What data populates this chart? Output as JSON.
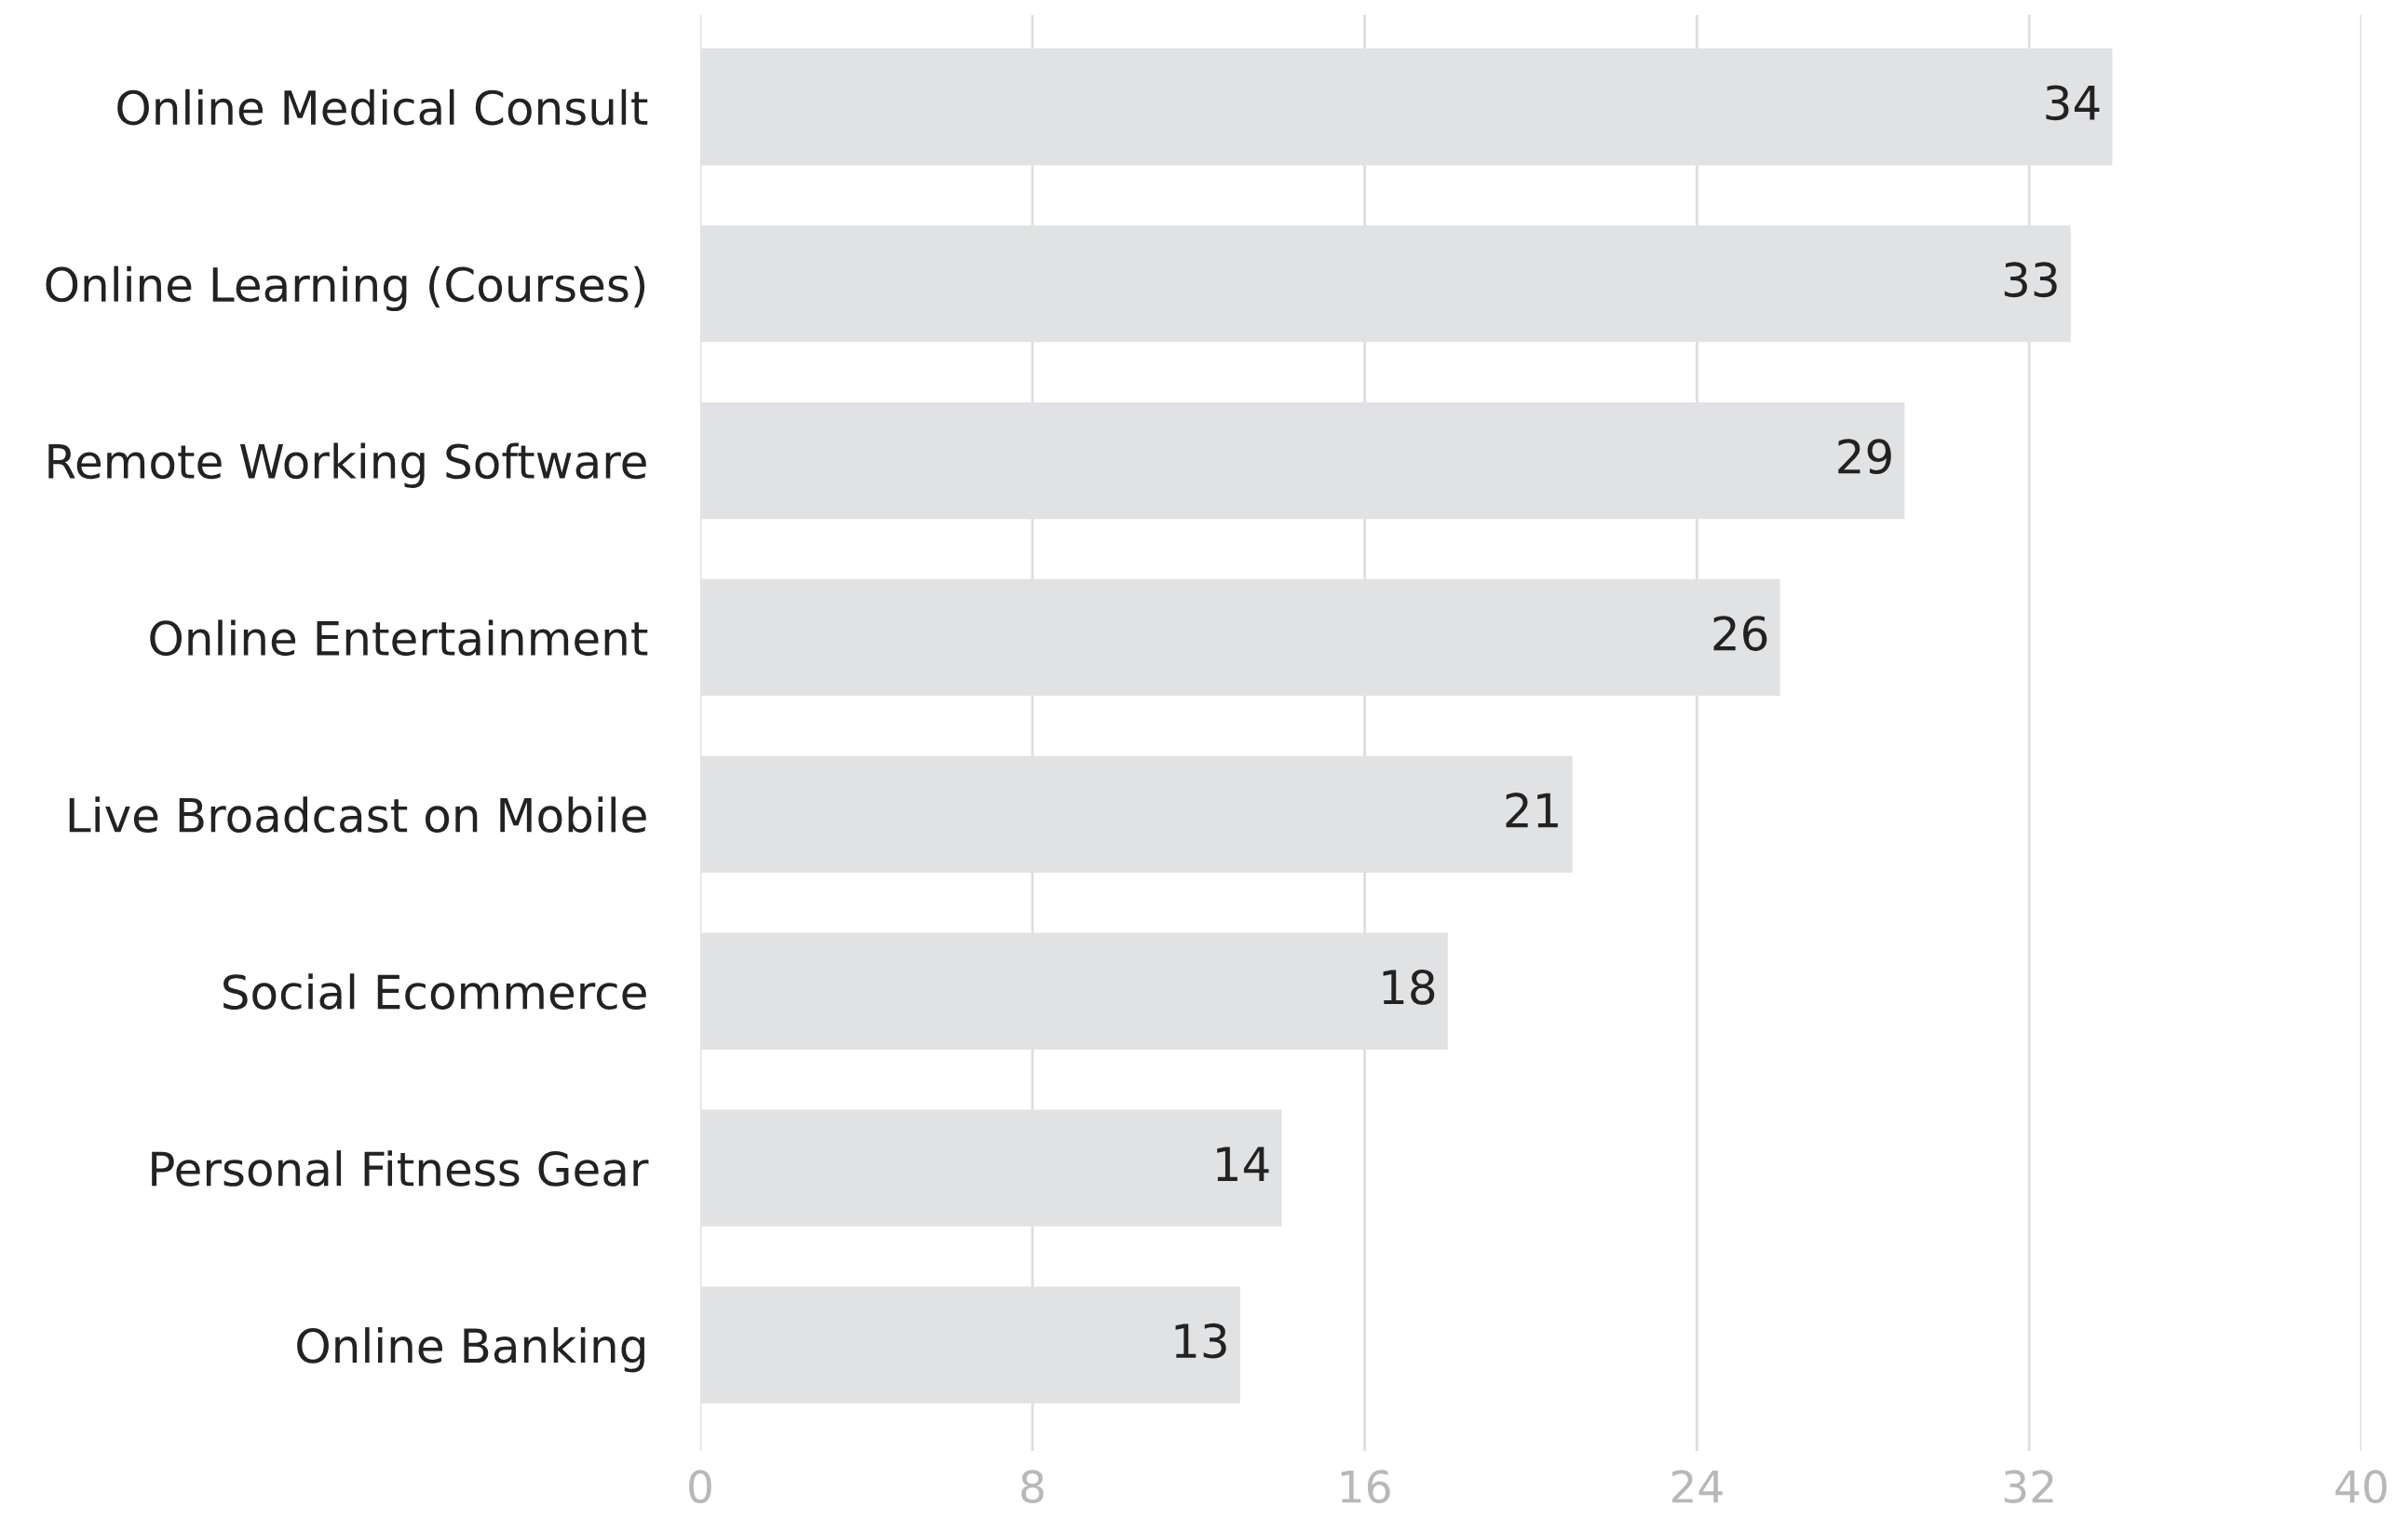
{
  "chart_data": {
    "type": "bar",
    "orientation": "horizontal",
    "categories": [
      "Online Medical Consult",
      "Online Learning (Courses)",
      "Remote Working Software",
      "Online Entertainment",
      "Live Broadcast on Mobile",
      "Social Ecommerce",
      "Personal Fitness Gear",
      "Online Banking"
    ],
    "values": [
      34,
      33,
      29,
      26,
      21,
      18,
      14,
      13
    ],
    "color": "#e1e2e4",
    "xlim": [
      0,
      40
    ],
    "xticks": [
      0,
      8,
      16,
      24,
      32,
      40
    ],
    "grid": "x",
    "data_labels": true,
    "legend": false
  }
}
